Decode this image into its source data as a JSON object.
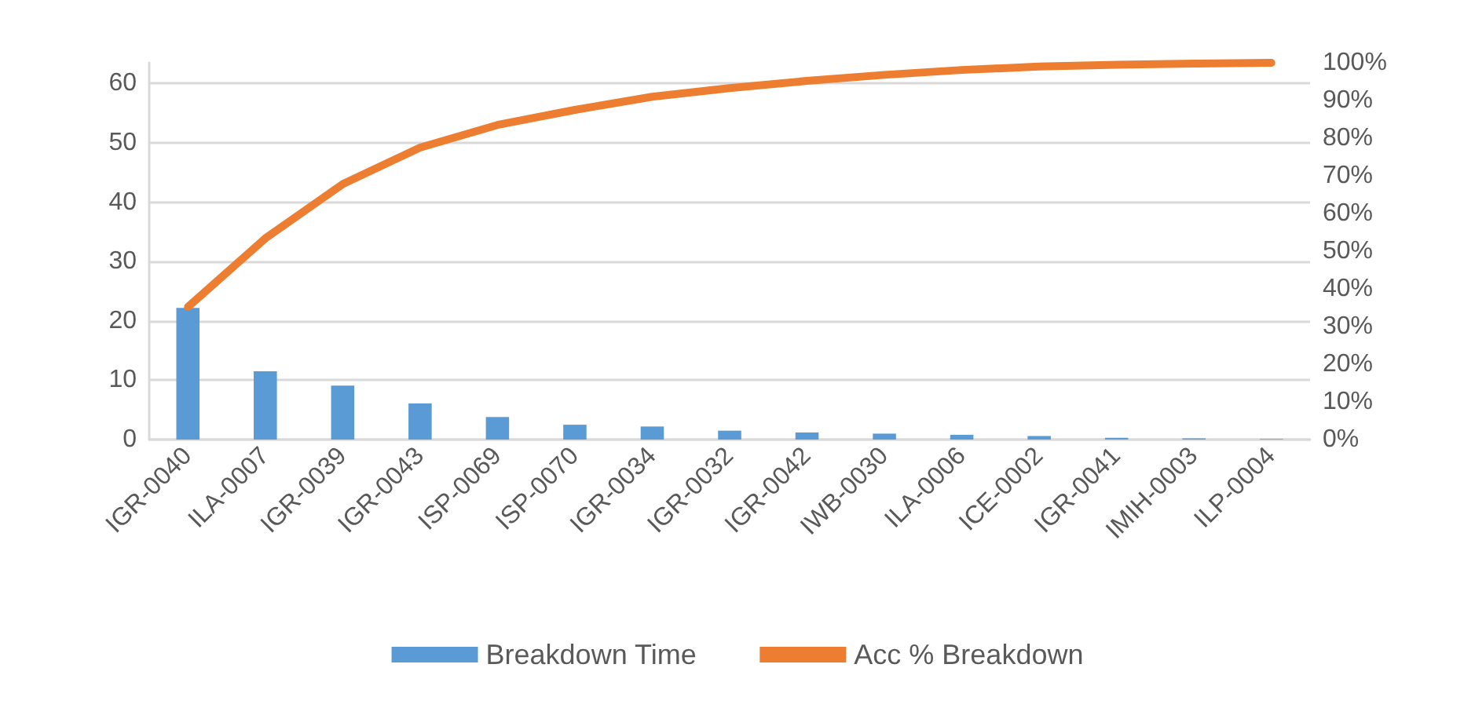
{
  "chart_data": {
    "type": "bar",
    "categories": [
      "IGR-0040",
      "ILA-0007",
      "IGR-0039",
      "IGR-0043",
      "ISP-0069",
      "ISP-0070",
      "IGR-0034",
      "IGR-0032",
      "IGR-0042",
      "IWB-0030",
      "ILA-0006",
      "ICE-0002",
      "IGR-0041",
      "IMIH-0003",
      "ILP-0004"
    ],
    "series": [
      {
        "name": "Breakdown Time",
        "color": "#5b9bd5",
        "values": [
          22.2,
          11.5,
          9.1,
          6.1,
          3.8,
          2.5,
          2.2,
          1.5,
          1.2,
          1.0,
          0.8,
          0.6,
          0.3,
          0.2,
          0.1
        ]
      },
      {
        "name": "Acc % Breakdown",
        "type": "line",
        "axis": "y2",
        "color": "#ed7d31",
        "values": [
          35.2,
          53.4,
          67.8,
          77.5,
          83.5,
          87.5,
          91.0,
          93.3,
          95.2,
          96.8,
          98.1,
          99.0,
          99.5,
          99.8,
          100
        ]
      }
    ],
    "ylim": [
      0,
      63.5
    ],
    "yticks": [
      0,
      10,
      20,
      30,
      40,
      50,
      60
    ],
    "y2lim": [
      0,
      100
    ],
    "y2ticks": [
      {
        "value": 0,
        "label": "0%"
      },
      {
        "value": 10,
        "label": "10%"
      },
      {
        "value": 20,
        "label": "20%"
      },
      {
        "value": 30,
        "label": "30%"
      },
      {
        "value": 40,
        "label": "40%"
      },
      {
        "value": 50,
        "label": "50%"
      },
      {
        "value": 60,
        "label": "60%"
      },
      {
        "value": 70,
        "label": "70%"
      },
      {
        "value": 80,
        "label": "80%"
      },
      {
        "value": 90,
        "label": "90%"
      },
      {
        "value": 100,
        "label": "100%"
      }
    ],
    "grid": "y",
    "legend": "bottom",
    "marker": "none",
    "line_style": "solid"
  }
}
